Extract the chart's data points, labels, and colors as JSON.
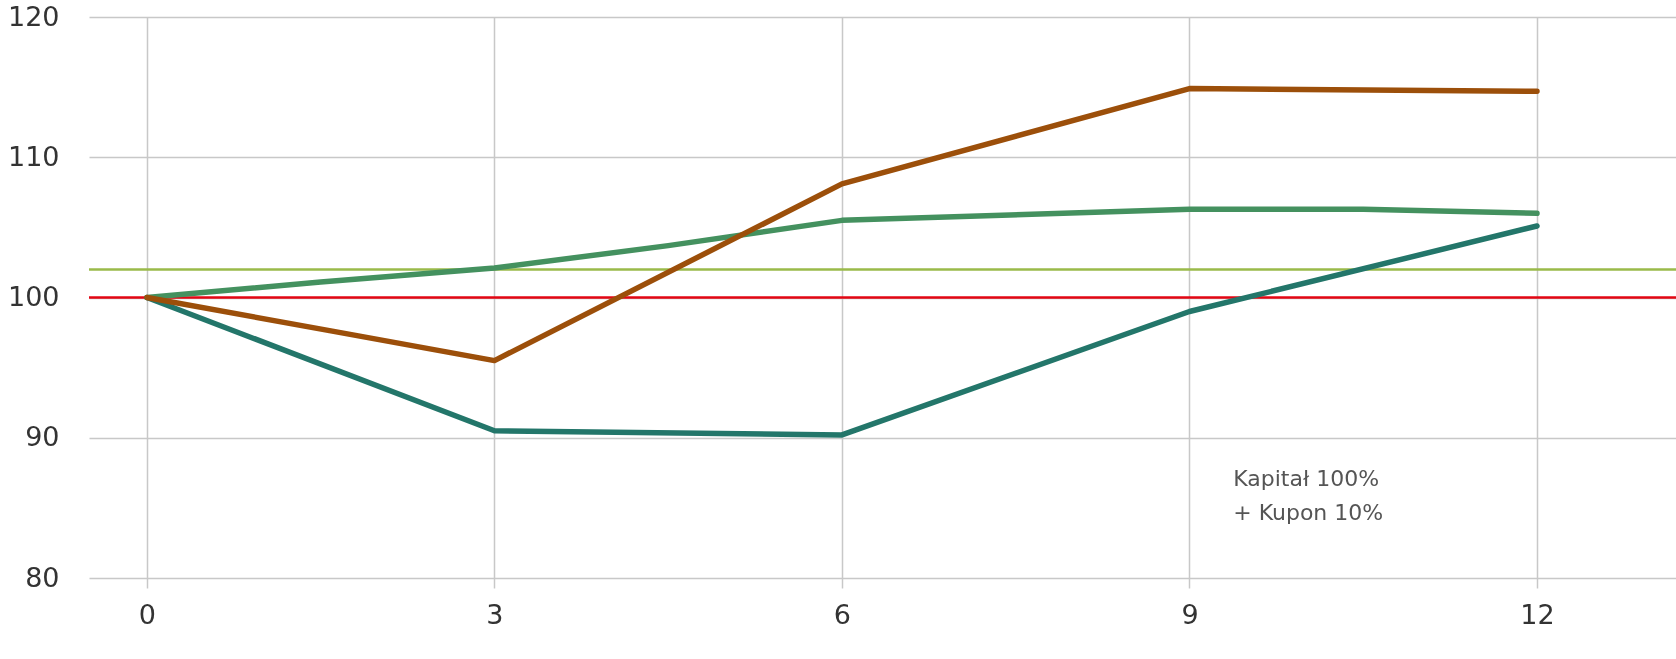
{
  "chart_data": {
    "type": "line",
    "xlim": [
      -0.5,
      13.2
    ],
    "xticks": [
      0,
      3,
      6,
      9,
      12
    ],
    "ylim": [
      80,
      120
    ],
    "yticks": [
      80,
      90,
      100,
      110,
      120
    ],
    "grid": true,
    "marker": "none",
    "line_style": "solid",
    "series": [
      {
        "color": "#44915f",
        "x": [
          0,
          1.5,
          3,
          4.5,
          6,
          9,
          10.5,
          12
        ],
        "values": [
          100,
          101.1,
          102.1,
          103.7,
          105.5,
          106.3,
          106.3,
          106.0
        ]
      },
      {
        "color": "#23766a",
        "x": [
          0,
          3,
          6,
          9,
          12
        ],
        "values": [
          100,
          90.5,
          90.2,
          99.0,
          105.1
        ]
      },
      {
        "color": "#9c4f0a",
        "x": [
          0,
          1.6,
          3,
          6,
          9,
          12
        ],
        "values": [
          100,
          97.6,
          95.5,
          108.1,
          114.9,
          114.7
        ]
      }
    ],
    "ref_lines": [
      {
        "axis": "y",
        "value": 102,
        "color": "#9aba4a",
        "line_style": "solid"
      },
      {
        "axis": "y",
        "value": 100,
        "color": "#e30613",
        "line_style": "solid"
      }
    ],
    "annotations": [
      "Kapitał 100%\n+ Kupon 10%"
    ]
  }
}
